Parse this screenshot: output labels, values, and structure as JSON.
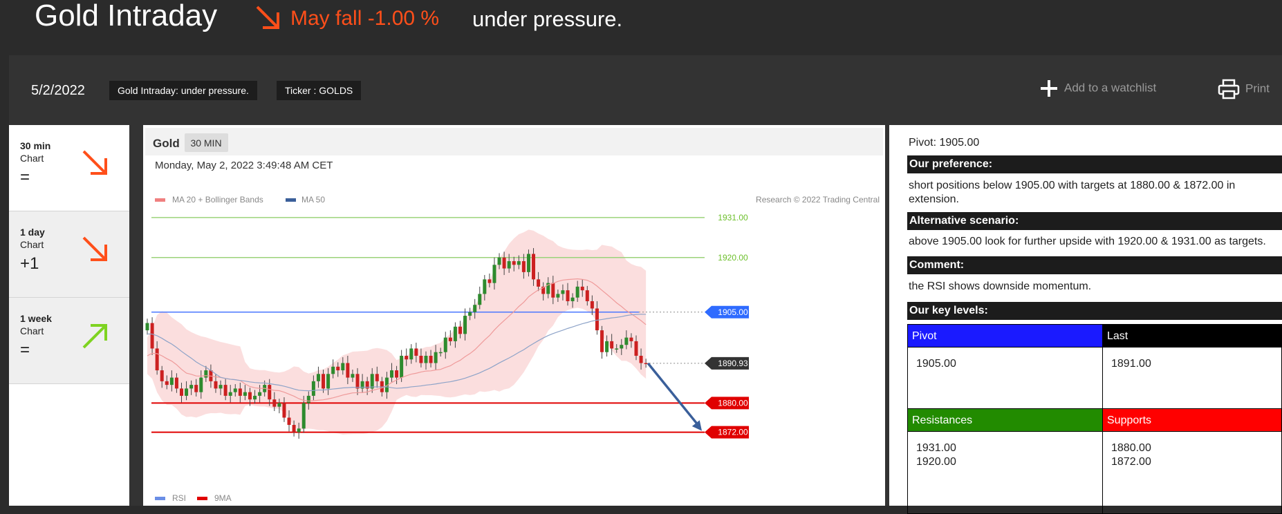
{
  "header": {
    "title": "Gold Intraday",
    "trend_text": "May fall -1.00 %",
    "subtitle": "under pressure."
  },
  "infobar": {
    "date": "5/2/2022",
    "tag_title": "Gold Intraday: under pressure.",
    "tag_ticker": "Ticker : GOLDS",
    "watchlist_label": "Add to a watchlist",
    "print_label": "Print"
  },
  "timeframes": [
    {
      "name": "30 min",
      "sub": "Chart",
      "score": "=",
      "arrow": "down",
      "color": "#ff4f1a"
    },
    {
      "name": "1 day",
      "sub": "Chart",
      "score": "+1",
      "arrow": "down",
      "color": "#ff4f1a"
    },
    {
      "name": "1 week",
      "sub": "Chart",
      "score": "=",
      "arrow": "up",
      "color": "#7ed321"
    }
  ],
  "chart_header": {
    "instrument": "Gold",
    "period": "30 MIN",
    "datetime": "Monday, May 2, 2022 3:49:48 AM CET",
    "legend_ma20": "MA 20 + Bollinger Bands",
    "legend_ma50": "MA 50",
    "copyright": "Research © 2022 Trading Central",
    "legend_rsi": "RSI",
    "legend_9ma": "9MA"
  },
  "chart_data": {
    "type": "candlestick",
    "ylim": [
      1866.6,
      1936.1
    ],
    "levels": [
      {
        "label": "1931.00",
        "value": 1931.0,
        "kind": "resistance"
      },
      {
        "label": "1920.00",
        "value": 1920.0,
        "kind": "resistance"
      },
      {
        "label": "1905.00",
        "value": 1905.0,
        "kind": "pivot"
      },
      {
        "label": "1890.93",
        "value": 1890.93,
        "kind": "last"
      },
      {
        "label": "1880.00",
        "value": 1880.0,
        "kind": "support"
      },
      {
        "label": "1872.00",
        "value": 1872.0,
        "kind": "support"
      }
    ],
    "closes": [
      1902,
      1895,
      1889,
      1886,
      1885,
      1887,
      1884,
      1882,
      1884,
      1885,
      1883,
      1887,
      1889,
      1886,
      1884,
      1885,
      1882,
      1883,
      1884,
      1882,
      1883,
      1881,
      1882,
      1883,
      1885,
      1881,
      1879,
      1880,
      1876,
      1874,
      1872,
      1873,
      1880,
      1882,
      1886,
      1888,
      1884,
      1888,
      1890,
      1889,
      1891,
      1887,
      1888,
      1884,
      1886,
      1884,
      1888,
      1886,
      1883,
      1887,
      1889,
      1887,
      1893,
      1892,
      1895,
      1893,
      1891,
      1893,
      1891,
      1894,
      1894,
      1898,
      1897,
      1901,
      1899,
      1904,
      1905,
      1907,
      1910,
      1914,
      1913,
      1918,
      1920,
      1917,
      1919,
      1918,
      1919,
      1916,
      1921,
      1914,
      1912,
      1910,
      1913,
      1909,
      1910,
      1911,
      1908,
      1909,
      1912,
      1911,
      1908,
      1906,
      1900,
      1894,
      1897,
      1895,
      1895,
      1896,
      1898,
      1897,
      1893,
      1891,
      1890.93
    ],
    "ma20_start": 1893,
    "ma50_start": 1899,
    "projection": {
      "from": 1890.93,
      "to": 1872.0
    }
  },
  "analysis": {
    "pivot_line": "Pivot: 1905.00",
    "preference_head": "Our preference:",
    "preference_text": "short positions below 1905.00 with targets at 1880.00 & 1872.00 in extension.",
    "alternative_head": "Alternative scenario:",
    "alternative_text": "above 1905.00 look for further upside with 1920.00 & 1931.00 as targets.",
    "comment_head": "Comment:",
    "comment_text": "the RSI shows downside momentum.",
    "levels_head": "Our key levels:",
    "table": {
      "pivot_head": "Pivot",
      "pivot_value": "1905.00",
      "last_head": "Last",
      "last_value": "1891.00",
      "res_head": "Resistances",
      "res_1": "1931.00",
      "res_2": "1920.00",
      "sup_head": "Supports",
      "sup_1": "1880.00",
      "sup_2": "1872.00"
    },
    "colors": {
      "pivot": "#1a1aff",
      "last": "#000000",
      "resistance": "#228b00",
      "support": "#ff0000"
    }
  }
}
